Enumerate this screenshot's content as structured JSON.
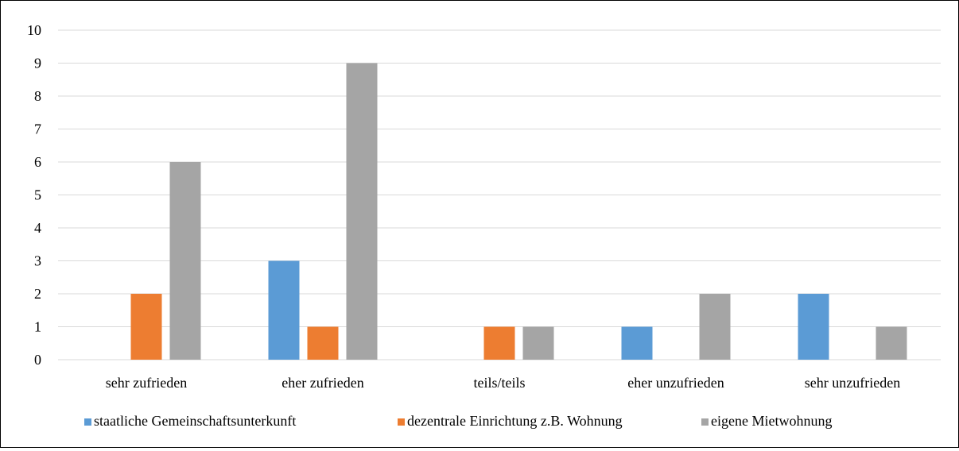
{
  "chart_data": {
    "type": "bar",
    "title": "",
    "xlabel": "",
    "ylabel": "",
    "ylim": [
      0,
      10
    ],
    "yticks": [
      0,
      1,
      2,
      3,
      4,
      5,
      6,
      7,
      8,
      9,
      10
    ],
    "grid": true,
    "legend_position": "bottom",
    "categories": [
      "sehr zufrieden",
      "eher zufrieden",
      "teils/teils",
      "eher unzufrieden",
      "sehr unzufrieden"
    ],
    "series": [
      {
        "name": "staatliche Gemeinschaftsunterkunft",
        "color": "#5B9BD5",
        "values": [
          0,
          3,
          0,
          1,
          2
        ]
      },
      {
        "name": "dezentrale Einrichtung z.B. Wohnung",
        "color": "#ED7D31",
        "values": [
          2,
          1,
          1,
          0,
          0
        ]
      },
      {
        "name": "eigene Mietwohnung",
        "color": "#A5A5A5",
        "values": [
          6,
          9,
          1,
          2,
          1
        ]
      }
    ]
  }
}
